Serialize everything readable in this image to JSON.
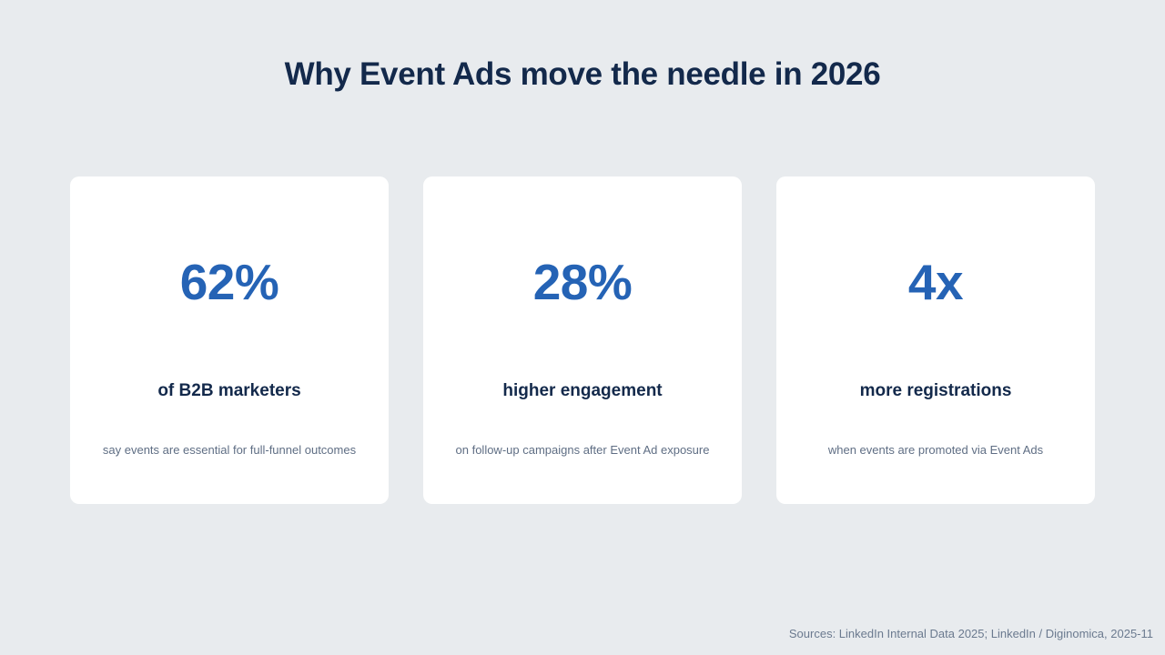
{
  "slide": {
    "title": "Why Event Ads move the needle in 2026"
  },
  "stats": [
    {
      "value": "62%",
      "label": "of B2B marketers",
      "description": "say events are essential for full-funnel outcomes"
    },
    {
      "value": "28%",
      "label": "higher engagement",
      "description": "on follow-up campaigns after Event Ad exposure"
    },
    {
      "value": "4x",
      "label": "more registrations",
      "description": "when events are promoted via Event Ads"
    }
  ],
  "footer": {
    "sources": "Sources: LinkedIn Internal Data 2025; LinkedIn / Diginomica, 2025-11"
  },
  "colors": {
    "background": "#e8ebee",
    "title": "#13294b",
    "accent": "#2563b5",
    "muted": "#5f6e84"
  }
}
